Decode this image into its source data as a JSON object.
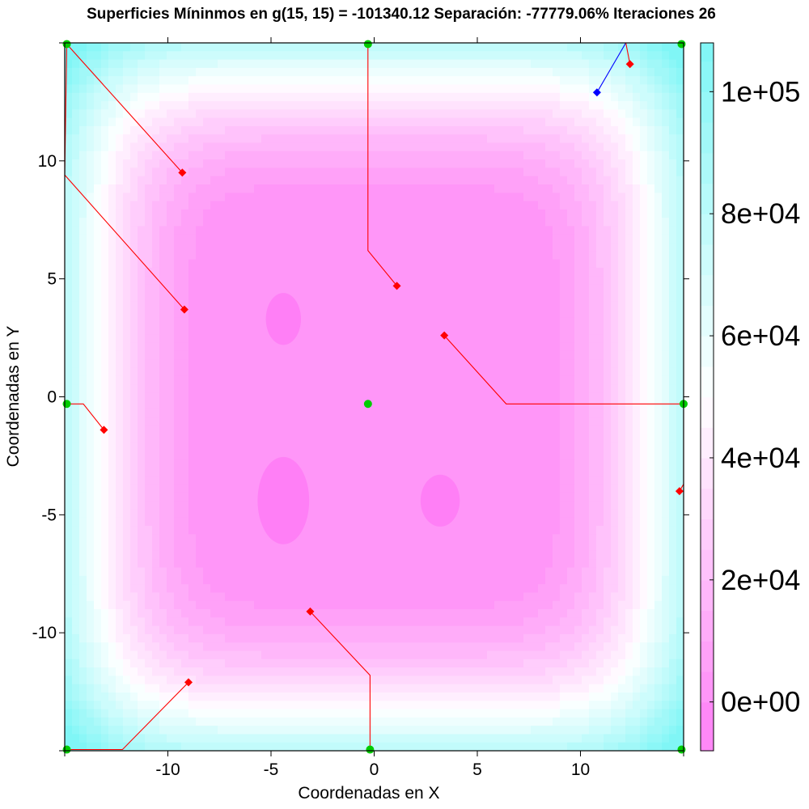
{
  "chart_data": {
    "type": "contour",
    "title": "Superficies Míninmos en g(15, 15) = -101340.12 Separación: -77779.06% Iteraciones 26",
    "xlabel": "Coordenadas en X",
    "ylabel": "Coordenadas en Y",
    "xlim": [
      -15,
      15
    ],
    "ylim": [
      -15,
      15
    ],
    "x_ticks": [
      -10,
      -5,
      0,
      5,
      10
    ],
    "x_tick_labels": [
      "-10",
      "-5",
      "0",
      "5",
      "10"
    ],
    "y_ticks": [
      -10,
      -5,
      0,
      5,
      10
    ],
    "y_tick_labels": [
      "-10",
      "-5",
      "0",
      "5",
      "10"
    ],
    "colorbar": {
      "range": [
        -8000,
        108000
      ],
      "ticks": [
        0,
        20000,
        40000,
        60000,
        80000,
        100000
      ],
      "tick_labels": [
        "0e+00",
        "2e+04",
        "4e+04",
        "6e+04",
        "8e+04",
        "1e+05"
      ],
      "colors": [
        "#ff7ff6",
        "#ffffff",
        "#7ff6f6"
      ]
    },
    "contour_levels": [
      0,
      5000,
      10000,
      15000,
      20000,
      25000,
      30000,
      35000,
      40000,
      45000,
      50000,
      55000,
      60000,
      65000,
      70000,
      75000,
      80000,
      85000,
      90000,
      95000,
      100000,
      105000
    ],
    "series": [
      {
        "color": "#ff0000",
        "marker": "diamond",
        "points": [
          [
            -14.9,
            14.95
          ],
          [
            -9.3,
            9.5
          ]
        ]
      },
      {
        "color": "#ff0000",
        "marker": "diamond",
        "points": [
          [
            -14.9,
            14.9
          ],
          [
            -15,
            9.4
          ],
          [
            -9.2,
            3.7
          ]
        ]
      },
      {
        "color": "#ff0000",
        "marker": "diamond",
        "points": [
          [
            -0.3,
            14.95
          ],
          [
            -0.3,
            7.3
          ],
          [
            -0.3,
            6.2
          ],
          [
            1.1,
            4.7
          ]
        ]
      },
      {
        "color": "#ff0000",
        "marker": "diamond",
        "points": [
          [
            15,
            -0.3
          ],
          [
            6.4,
            -0.3
          ],
          [
            3.4,
            2.6
          ]
        ]
      },
      {
        "color": "#ff0000",
        "marker": "diamond",
        "points": [
          [
            15,
            -0.3
          ],
          [
            15,
            -3.7
          ],
          [
            14.8,
            -4.0
          ]
        ]
      },
      {
        "color": "#ff0000",
        "marker": "diamond",
        "points": [
          [
            -14.9,
            -0.3
          ],
          [
            -14.1,
            -0.3
          ],
          [
            -13.1,
            -1.4
          ]
        ]
      },
      {
        "color": "#ff0000",
        "marker": "diamond",
        "points": [
          [
            -0.2,
            -14.95
          ],
          [
            -0.2,
            -11.8
          ],
          [
            -3.1,
            -9.1
          ]
        ]
      },
      {
        "color": "#ff0000",
        "marker": "diamond",
        "points": [
          [
            -14.9,
            -14.95
          ],
          [
            -12.2,
            -14.95
          ],
          [
            -9.0,
            -12.1
          ]
        ]
      },
      {
        "color": "#0000ff",
        "marker": "diamond",
        "points": [
          [
            12.2,
            15.0
          ],
          [
            10.8,
            12.9
          ]
        ]
      },
      {
        "color": "#ff0000",
        "marker": "diamond",
        "points": [
          [
            12.2,
            15.0
          ],
          [
            12.4,
            14.1
          ]
        ]
      }
    ],
    "minima_points": [
      [
        -14.9,
        14.95
      ],
      [
        -0.3,
        14.95
      ],
      [
        14.9,
        14.95
      ],
      [
        -14.9,
        -0.3
      ],
      [
        -0.3,
        -0.3
      ],
      [
        15,
        -0.3
      ],
      [
        -14.9,
        -14.95
      ],
      [
        -0.2,
        -14.95
      ],
      [
        14.9,
        -14.95
      ]
    ],
    "minima_color": "#00cc00"
  }
}
